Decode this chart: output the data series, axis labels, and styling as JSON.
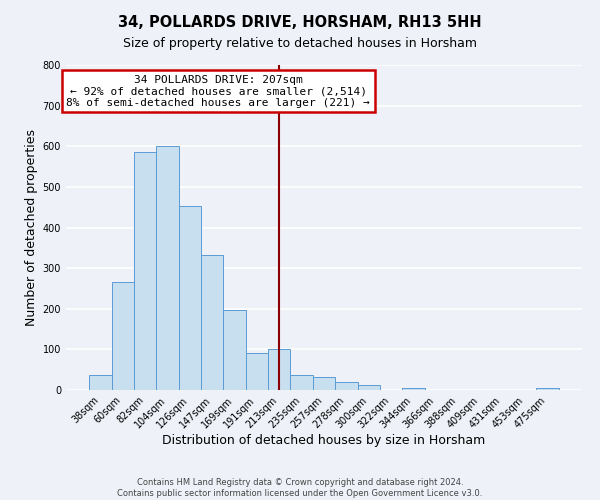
{
  "title": "34, POLLARDS DRIVE, HORSHAM, RH13 5HH",
  "subtitle": "Size of property relative to detached houses in Horsham",
  "xlabel": "Distribution of detached houses by size in Horsham",
  "ylabel": "Number of detached properties",
  "bin_labels": [
    "38sqm",
    "60sqm",
    "82sqm",
    "104sqm",
    "126sqm",
    "147sqm",
    "169sqm",
    "191sqm",
    "213sqm",
    "235sqm",
    "257sqm",
    "278sqm",
    "300sqm",
    "322sqm",
    "344sqm",
    "366sqm",
    "388sqm",
    "409sqm",
    "431sqm",
    "453sqm",
    "475sqm"
  ],
  "bar_heights": [
    38,
    265,
    585,
    600,
    453,
    332,
    196,
    91,
    100,
    38,
    32,
    20,
    12,
    0,
    5,
    0,
    0,
    0,
    0,
    0,
    5
  ],
  "bar_color": "#c8dff0",
  "bar_edge_color": "#5b9bd5",
  "vline_x": 8.0,
  "vline_color": "#8b0000",
  "annotation_line1": "34 POLLARDS DRIVE: 207sqm",
  "annotation_line2": "← 92% of detached houses are smaller (2,514)",
  "annotation_line3": "8% of semi-detached houses are larger (221) →",
  "annotation_box_color": "#ffffff",
  "annotation_box_edge_color": "#cc0000",
  "ylim": [
    0,
    800
  ],
  "yticks": [
    0,
    100,
    200,
    300,
    400,
    500,
    600,
    700,
    800
  ],
  "footer_line1": "Contains HM Land Registry data © Crown copyright and database right 2024.",
  "footer_line2": "Contains public sector information licensed under the Open Government Licence v3.0.",
  "background_color": "#eef2f8",
  "grid_color": "#ffffff",
  "title_fontsize": 10.5,
  "subtitle_fontsize": 9,
  "axis_label_fontsize": 9,
  "tick_fontsize": 7,
  "footer_fontsize": 6,
  "annotation_fontsize": 8
}
